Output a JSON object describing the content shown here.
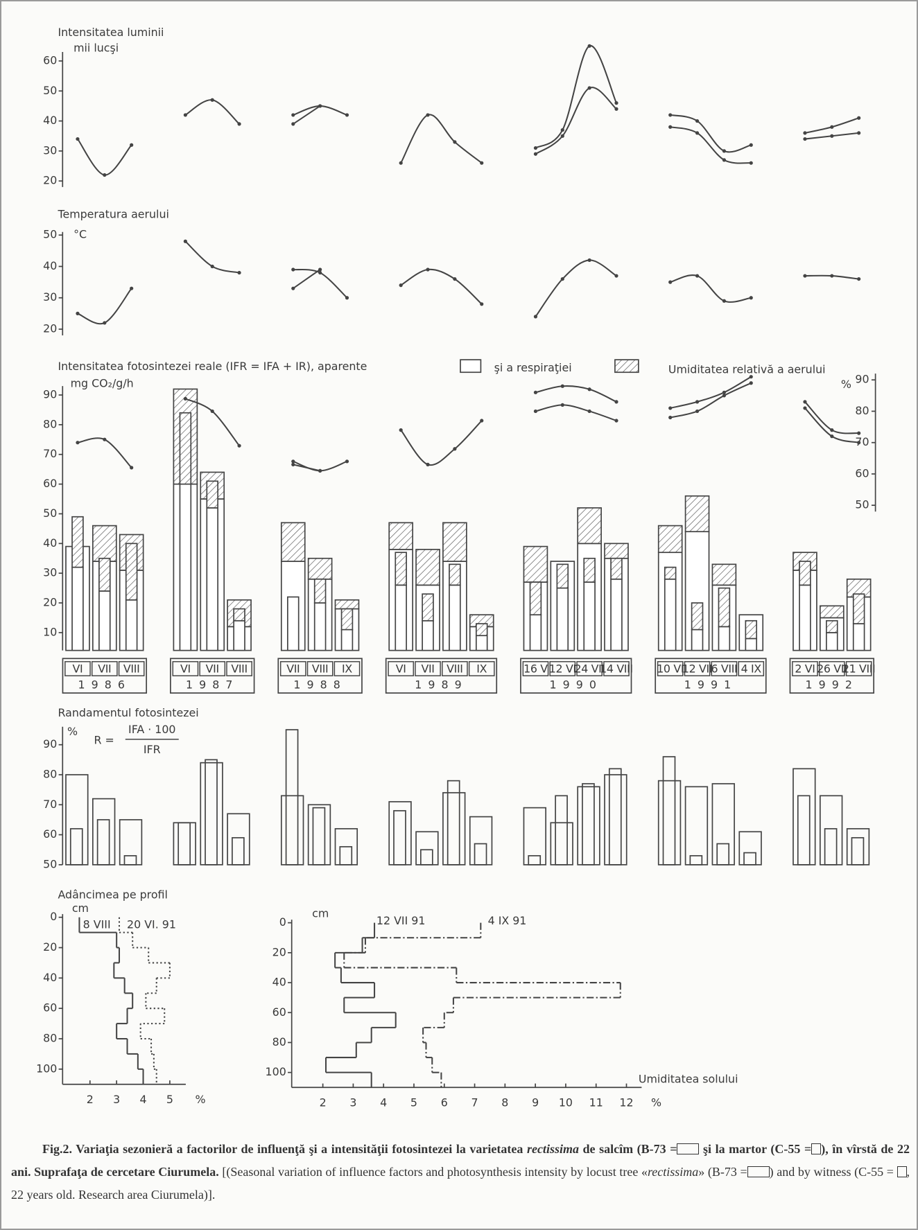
{
  "chart_data": [
    {
      "type": "line",
      "title": "Intensitatea luminii",
      "y_label": "mii lucşi",
      "ylim": [
        18,
        63
      ],
      "yticks": [
        20,
        30,
        40,
        50,
        60
      ],
      "series": [
        {
          "color": "#444",
          "values": [
            34,
            22,
            32,
            null,
            42,
            47,
            39,
            null,
            42,
            45,
            42,
            null,
            26,
            42,
            33,
            26,
            null,
            31,
            37,
            65,
            46,
            null,
            42,
            40,
            30,
            32,
            null,
            36,
            38,
            41
          ]
        },
        {
          "color": "#444",
          "values": [
            null,
            null,
            null,
            null,
            null,
            null,
            null,
            null,
            39,
            45,
            null,
            null,
            null,
            null,
            null,
            null,
            null,
            29,
            35,
            51,
            44,
            null,
            38,
            36,
            27,
            26,
            null,
            34,
            35,
            36
          ]
        }
      ]
    },
    {
      "type": "line",
      "title": "Temperatura aerului",
      "y_label": "°C",
      "ylim": [
        18,
        51
      ],
      "yticks": [
        20,
        30,
        40,
        50
      ],
      "series": [
        {
          "color": "#444",
          "values": [
            25,
            22,
            33,
            null,
            48,
            40,
            38,
            null,
            39,
            38,
            30,
            null,
            34,
            39,
            36,
            28,
            null,
            24,
            36,
            42,
            37,
            null,
            35,
            37,
            29,
            30,
            null,
            37,
            37,
            36
          ]
        },
        {
          "color": "#444",
          "values": [
            null,
            null,
            null,
            null,
            null,
            null,
            null,
            null,
            33,
            39,
            null,
            null,
            null,
            null,
            null,
            null,
            null,
            null,
            null,
            null,
            null,
            null,
            null,
            null,
            null,
            null,
            null,
            null,
            null,
            null
          ]
        }
      ]
    },
    {
      "type": "bar",
      "stacked": true,
      "title": "Intensitatea fotosintezei reale (IFR = IFA + IR), aparente",
      "title_2": "şi a respiraţiei",
      "y_label": "mg CO₂/g/h",
      "ylim": [
        4,
        93
      ],
      "yticks": [
        10,
        20,
        30,
        40,
        50,
        60,
        70,
        80,
        90
      ],
      "y2_title": "Umiditatea relativă a aerului",
      "y2_label": "%",
      "y2lim": [
        48,
        92
      ],
      "y2ticks": [
        50,
        60,
        70,
        80,
        90
      ],
      "categories": [
        "VI",
        "VII",
        "VIII",
        null,
        "VI",
        "VII",
        "VIII",
        null,
        "VII",
        "VIII",
        "IX",
        null,
        "VI",
        "VII",
        "VIII",
        "IX",
        null,
        "16 V",
        "12 VI",
        "24 VII",
        "14 VIII",
        null,
        "10 VI",
        "12 VII",
        "6 VIII",
        "4 IX",
        null,
        "2 VI",
        "26 VII",
        "21 VIII"
      ],
      "years": [
        "1986",
        "1987",
        "1988",
        "1989",
        "1990",
        "1991",
        "1992"
      ],
      "series": [
        {
          "color": "#444",
          "hatch": false,
          "values": [
            39,
            34,
            31,
            null,
            60,
            55,
            12,
            null,
            34,
            28,
            18,
            null,
            38,
            26,
            34,
            12,
            null,
            27,
            34,
            40,
            35,
            null,
            37,
            44,
            26,
            16,
            null,
            31,
            15,
            22
          ]
        },
        {
          "color": "#444",
          "hatch": true,
          "values": [
            0,
            12,
            12,
            null,
            32,
            9,
            9,
            null,
            13,
            7,
            3,
            null,
            9,
            12,
            13,
            4,
            null,
            12,
            0,
            12,
            5,
            null,
            9,
            12,
            7,
            0,
            null,
            6,
            4,
            6
          ]
        },
        {
          "color": "#444",
          "hatch": false,
          "values": [
            32,
            24,
            21,
            null,
            60,
            52,
            14,
            null,
            22,
            20,
            11,
            null,
            26,
            14,
            26,
            9,
            null,
            16,
            25,
            27,
            28,
            null,
            28,
            11,
            12,
            8,
            null,
            26,
            10,
            13
          ]
        },
        {
          "color": "#444",
          "hatch": true,
          "values": [
            17,
            11,
            19,
            null,
            24,
            9,
            4,
            null,
            0,
            8,
            7,
            null,
            11,
            9,
            7,
            4,
            null,
            11,
            8,
            8,
            7,
            null,
            4,
            9,
            13,
            6,
            null,
            8,
            4,
            10
          ]
        },
        {
          "color": "#444",
          "axis": "y2",
          "values": [
            70,
            71,
            62,
            null,
            84,
            80,
            69,
            null,
            64,
            61,
            64,
            null,
            74,
            63,
            68,
            77,
            null,
            86,
            88,
            87,
            83,
            null,
            81,
            83,
            86,
            91,
            null,
            83,
            74,
            73
          ]
        },
        {
          "color": "#444",
          "axis": "y2",
          "values": [
            null,
            null,
            null,
            null,
            null,
            null,
            null,
            null,
            63,
            61,
            null,
            null,
            null,
            null,
            null,
            null,
            null,
            80,
            82,
            80,
            77,
            null,
            78,
            80,
            85,
            89,
            null,
            81,
            72,
            70
          ]
        }
      ]
    },
    {
      "type": "bar",
      "stacked": false,
      "title": "Randamentul fotosintezei",
      "y_label": "%",
      "formula": {
        "lhs": "R =",
        "numerator": "IFA · 100",
        "denominator": "IFR"
      },
      "ylim": [
        50,
        96
      ],
      "yticks": [
        50,
        60,
        70,
        80,
        90
      ],
      "series": [
        {
          "color": "#444",
          "values": [
            80,
            72,
            65,
            null,
            64,
            84,
            67,
            null,
            73,
            70,
            62,
            null,
            71,
            61,
            74,
            66,
            null,
            69,
            64,
            76,
            80,
            null,
            78,
            76,
            77,
            61,
            null,
            82,
            73,
            62
          ]
        },
        {
          "color": "#444",
          "values": [
            62,
            65,
            53,
            null,
            64,
            85,
            59,
            null,
            95,
            69,
            56,
            null,
            68,
            55,
            78,
            57,
            null,
            53,
            73,
            77,
            82,
            null,
            86,
            53,
            57,
            54,
            null,
            73,
            62,
            59
          ]
        }
      ]
    },
    {
      "type": "step",
      "title": "Adâncimea pe profil",
      "y_label": "cm",
      "x_label": "%",
      "ylim": [
        0,
        110
      ],
      "yticks": [
        0,
        20,
        40,
        60,
        80,
        100
      ],
      "xlim": [
        1,
        5.6
      ],
      "xticks": [
        2,
        3,
        4,
        5
      ],
      "depths": [
        0,
        10,
        20,
        30,
        40,
        50,
        60,
        70,
        80,
        90,
        100,
        110
      ],
      "series": [
        {
          "name": "8 VIII",
          "color": "#444",
          "dash": "solid",
          "values": [
            1.6,
            3.0,
            3.1,
            2.9,
            3.3,
            3.6,
            3.4,
            3.0,
            3.4,
            3.8,
            4.0
          ]
        },
        {
          "name": "20 VI. 91",
          "color": "#444",
          "dash": "dotted",
          "values": [
            3.1,
            3.6,
            4.2,
            5.0,
            4.5,
            4.1,
            4.8,
            3.9,
            4.3,
            4.4,
            4.5
          ]
        }
      ]
    },
    {
      "type": "step",
      "annotation": "Umiditatea solului",
      "y_label": "cm",
      "x_label": "%",
      "ylim": [
        0,
        110
      ],
      "yticks": [
        0,
        20,
        40,
        60,
        80,
        100
      ],
      "xlim": [
        1,
        12.5
      ],
      "xticks": [
        2,
        3,
        4,
        5,
        6,
        7,
        8,
        9,
        10,
        11,
        12
      ],
      "depths": [
        0,
        10,
        20,
        30,
        40,
        50,
        60,
        70,
        80,
        90,
        100,
        110
      ],
      "series": [
        {
          "name": "12 VII 91",
          "color": "#444",
          "dash": "solid",
          "values": [
            3.7,
            3.3,
            2.4,
            2.6,
            3.7,
            2.7,
            4.4,
            3.6,
            3.1,
            2.1,
            3.6
          ]
        },
        {
          "name": "4 IX 91",
          "color": "#444",
          "dash": "dash-dot",
          "values": [
            7.2,
            3.4,
            2.7,
            6.4,
            11.8,
            6.3,
            6.0,
            5.3,
            5.4,
            5.6,
            5.9
          ]
        }
      ]
    }
  ],
  "caption": [
    "Fig.2. Variaţia sezonieră a factorilor de influenţă şi a intensităţii fotosintezei la varietatea ",
    "rectissima",
    " de salcîm (B-73 =",
    " şi la martor (C-55 =",
    "), în vîrstă de 22 ani. Suprafaţa de cercetare Ciurumela.",
    " [(Seasonal variation of influence factors and photosynthesis intensity by locust tree «",
    "rectissima",
    "» (B-73 =",
    ") and by witness (C-55 = ",
    ", 22 years old. Research area Ciurumela)]."
  ]
}
